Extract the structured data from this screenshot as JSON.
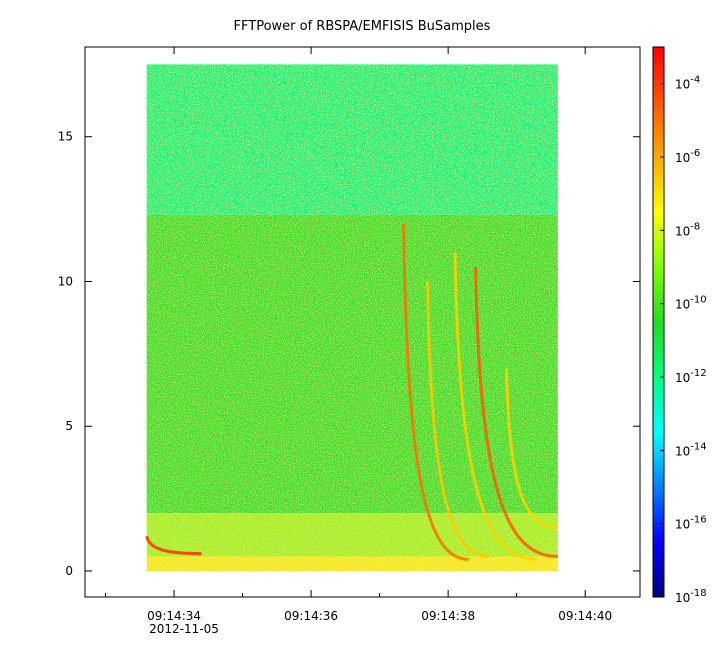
{
  "chart_data": {
    "type": "heatmap",
    "title": "FFTPower of RBSPA/EMFISIS  BuSamples",
    "xlabel": "",
    "ylabel": "",
    "x_ticks": [
      "09:14:34",
      "09:14:36",
      "09:14:38",
      "09:14:40"
    ],
    "x_tick_values": [
      34,
      36,
      38,
      40
    ],
    "x_minor_tick_values": [
      33,
      35,
      37,
      39
    ],
    "x_date_label": "2012-11-05",
    "xlim": [
      32.7,
      40.8
    ],
    "x_data_range": [
      33.6,
      39.6
    ],
    "y_ticks": [
      "0",
      "5",
      "10",
      "15"
    ],
    "y_tick_values": [
      0,
      5,
      10,
      15
    ],
    "ylim": [
      -0.9,
      18.1
    ],
    "y_data_range": [
      0,
      17.5
    ],
    "colorbar": {
      "scale": "log",
      "range": [
        1e-18,
        0.001
      ],
      "tick_labels": [
        {
          "base": "10",
          "exp": "-4",
          "value": 0.0001
        },
        {
          "base": "10",
          "exp": "-6",
          "value": 1e-06
        },
        {
          "base": "10",
          "exp": "-8",
          "value": 1e-08
        },
        {
          "base": "10",
          "exp": "-10",
          "value": 1e-10
        },
        {
          "base": "10",
          "exp": "-12",
          "value": 1e-12
        },
        {
          "base": "10",
          "exp": "-14",
          "value": 1e-14
        },
        {
          "base": "10",
          "exp": "-16",
          "value": 1e-16
        },
        {
          "base": "10",
          "exp": "-18",
          "value": 1e-18
        }
      ],
      "colormap": [
        "#00007f",
        "#0000ff",
        "#007fff",
        "#00ffff",
        "#00ff7f",
        "#22dd22",
        "#7fff00",
        "#ffff00",
        "#ffaa00",
        "#ff5500",
        "#ff0000"
      ]
    },
    "bands": [
      {
        "y_range": [
          12.3,
          17.5
        ],
        "color": "#19f07a",
        "log_power": -12.5
      },
      {
        "y_range": [
          2.0,
          12.3
        ],
        "color": "#3fdc2c",
        "log_power": -10.5
      },
      {
        "y_range": [
          0.5,
          2.0
        ],
        "color": "#a8ee22",
        "log_power": -9.5
      },
      {
        "y_range": [
          0.0,
          0.5
        ],
        "color": "#f5e812",
        "log_power": -8
      }
    ],
    "chorus_elements": [
      {
        "t_start": 37.35,
        "t_end": 38.3,
        "f_top": 12.0,
        "f_bottom": 0.4,
        "color": "#ff6f00"
      },
      {
        "t_start": 37.7,
        "t_end": 38.6,
        "f_top": 10.0,
        "f_bottom": 0.5,
        "color": "#ffc800"
      },
      {
        "t_start": 38.1,
        "t_end": 39.3,
        "f_top": 11.0,
        "f_bottom": 0.4,
        "color": "#ffd000"
      },
      {
        "t_start": 38.4,
        "t_end": 39.6,
        "f_top": 10.5,
        "f_bottom": 0.5,
        "color": "#ff5a00"
      },
      {
        "t_start": 38.85,
        "t_end": 39.6,
        "f_top": 7.0,
        "f_bottom": 1.5,
        "color": "#ffd200"
      },
      {
        "t_start": 33.6,
        "t_end": 34.4,
        "f_top": 1.2,
        "f_bottom": 0.6,
        "color": "#ff3000"
      }
    ]
  }
}
